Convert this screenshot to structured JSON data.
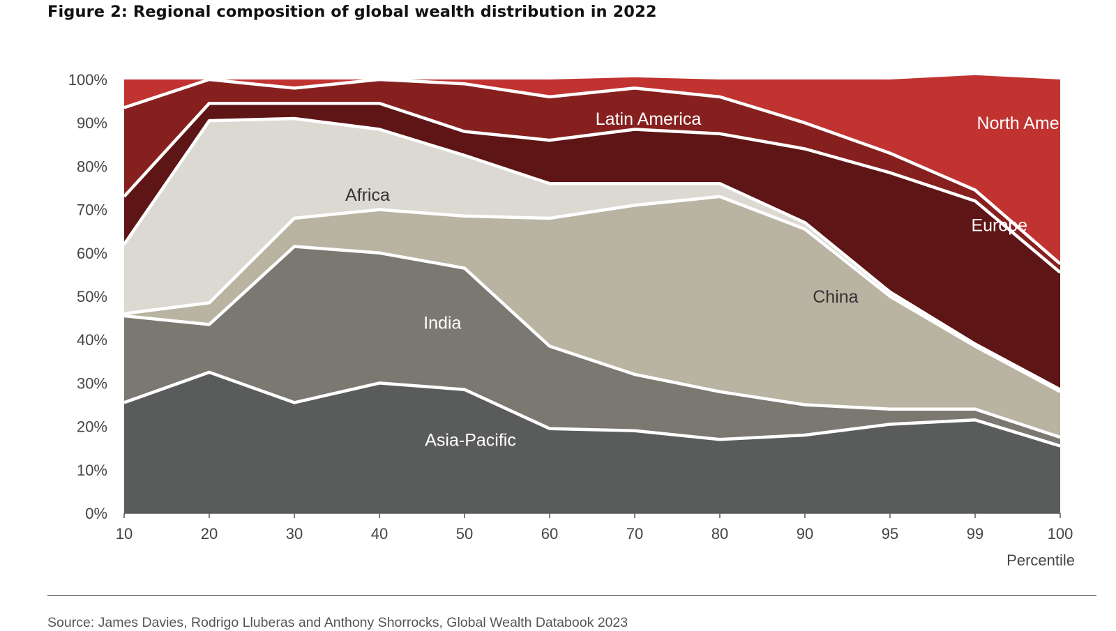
{
  "figure": {
    "title": "Figure 2: Regional composition of global wealth distribution in 2022",
    "source": "Source: James Davies, Rodrigo Lluberas and Anthony Shorrocks, Global Wealth Databook 2023"
  },
  "chart_data": {
    "type": "area",
    "stacked": true,
    "normalized": true,
    "title": "Figure 2: Regional composition of global wealth distribution in 2022",
    "xlabel": "Percentile",
    "ylabel": "",
    "categories": [
      "10",
      "20",
      "30",
      "40",
      "50",
      "60",
      "70",
      "80",
      "90",
      "95",
      "99",
      "100"
    ],
    "yticks": [
      "0%",
      "10%",
      "20%",
      "30%",
      "40%",
      "50%",
      "60%",
      "70%",
      "80%",
      "90%",
      "100%"
    ],
    "ylim": [
      0,
      100
    ],
    "grid": false,
    "legend": "inline",
    "series": [
      {
        "name": "Asia-Pacific",
        "color": "#5a5c5b",
        "label_color": "#ffffff",
        "label_at": {
          "x": 37,
          "y": 17
        },
        "values": [
          25.5,
          32.5,
          25.5,
          30,
          28.5,
          19.5,
          19,
          17,
          18,
          20.5,
          21.5,
          15.5
        ]
      },
      {
        "name": "India",
        "color": "#7a7870",
        "label_color": "#ffffff",
        "label_at": {
          "x": 34,
          "y": 44
        },
        "values": [
          20,
          11,
          36,
          30,
          28,
          19,
          13,
          11,
          7,
          3.5,
          2.5,
          2
        ]
      },
      {
        "name": "China",
        "color": "#b9b3a2",
        "label_color": "#333333",
        "label_at": {
          "x": 76,
          "y": 50
        },
        "values": [
          0.5,
          5,
          6.5,
          10,
          12,
          29.5,
          39,
          45,
          40.5,
          26,
          14.5,
          10.5
        ]
      },
      {
        "name": "Africa",
        "color": "#dbd9d2",
        "label_color": "#333333",
        "label_at": {
          "x": 26,
          "y": 73.5
        },
        "values": [
          16,
          42,
          23,
          18.5,
          14,
          8,
          5,
          3,
          1.5,
          1,
          0.5,
          0.5
        ]
      },
      {
        "name": "Europe",
        "color": "#5e1516",
        "label_color": "#ffffff",
        "label_at": {
          "x": 93.5,
          "y": 66.5
        },
        "values": [
          11,
          4,
          3.5,
          6,
          5.5,
          10,
          12.5,
          11.5,
          17,
          27.5,
          33,
          27
        ]
      },
      {
        "name": "Latin America",
        "color": "#86201f",
        "label_color": "#ffffff",
        "label_at": {
          "x": 56,
          "y": 91
        },
        "values": [
          20.5,
          5.5,
          3.5,
          5.5,
          11,
          10,
          9.5,
          8.5,
          6,
          4.5,
          2.5,
          2
        ]
      },
      {
        "name": "North America",
        "color": "#c13331",
        "label_color": "#ffffff",
        "label_at": {
          "x": 97,
          "y": 90
        },
        "values": [
          6.5,
          0,
          2,
          0,
          1,
          4,
          2.5,
          4,
          10,
          17,
          26.5,
          42.5
        ]
      }
    ]
  }
}
